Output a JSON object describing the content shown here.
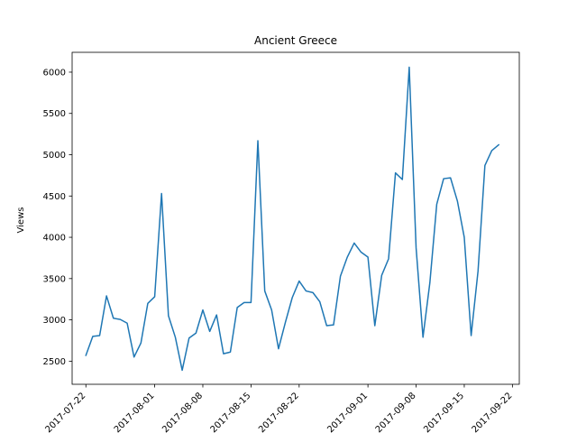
{
  "chart_data": {
    "type": "line",
    "title": "Ancient Greece",
    "xlabel": "",
    "ylabel": "Views",
    "ylim": [
      2220,
      6240
    ],
    "xlim": [
      "2017-07-20",
      "2017-09-23"
    ],
    "grid": false,
    "line_color": "#1f77b4",
    "yticks": [
      2500,
      3000,
      3500,
      4000,
      4500,
      5000,
      5500,
      6000
    ],
    "xticks": [
      "2017-07-22",
      "2017-08-01",
      "2017-08-08",
      "2017-08-15",
      "2017-08-22",
      "2017-09-01",
      "2017-09-08",
      "2017-09-15",
      "2017-09-22"
    ],
    "series": [
      {
        "x": [
          "2017-07-22",
          "2017-07-23",
          "2017-07-24",
          "2017-07-25",
          "2017-07-26",
          "2017-07-27",
          "2017-07-28",
          "2017-07-29",
          "2017-07-30",
          "2017-07-31",
          "2017-08-01",
          "2017-08-02",
          "2017-08-03",
          "2017-08-04",
          "2017-08-05",
          "2017-08-06",
          "2017-08-07",
          "2017-08-08",
          "2017-08-09",
          "2017-08-10",
          "2017-08-11",
          "2017-08-12",
          "2017-08-13",
          "2017-08-14",
          "2017-08-15",
          "2017-08-16",
          "2017-08-17",
          "2017-08-18",
          "2017-08-19",
          "2017-08-20",
          "2017-08-21",
          "2017-08-22",
          "2017-08-23",
          "2017-08-24",
          "2017-08-25",
          "2017-08-26",
          "2017-08-27",
          "2017-08-28",
          "2017-08-29",
          "2017-08-30",
          "2017-08-31",
          "2017-09-01",
          "2017-09-02",
          "2017-09-03",
          "2017-09-04",
          "2017-09-05",
          "2017-09-06",
          "2017-09-07",
          "2017-09-08",
          "2017-09-09",
          "2017-09-10",
          "2017-09-11",
          "2017-09-12",
          "2017-09-13",
          "2017-09-14",
          "2017-09-15",
          "2017-09-16",
          "2017-09-17",
          "2017-09-18",
          "2017-09-19",
          "2017-09-20"
        ],
        "values": [
          2570,
          2800,
          2810,
          3290,
          3020,
          3005,
          2960,
          2550,
          2720,
          3200,
          3280,
          4530,
          3050,
          2790,
          2390,
          2780,
          2840,
          3120,
          2860,
          3060,
          2590,
          2610,
          3150,
          3210,
          3210,
          5170,
          3350,
          3120,
          2650,
          2970,
          3270,
          3470,
          3350,
          3330,
          3220,
          2930,
          2940,
          3530,
          3760,
          3930,
          3820,
          3760,
          2930,
          3540,
          3740,
          4780,
          4700,
          6060,
          3870,
          2790,
          3450,
          4400,
          4710,
          4720,
          4440,
          4000,
          2810,
          3590,
          4870,
          5050,
          5120
        ]
      }
    ]
  }
}
